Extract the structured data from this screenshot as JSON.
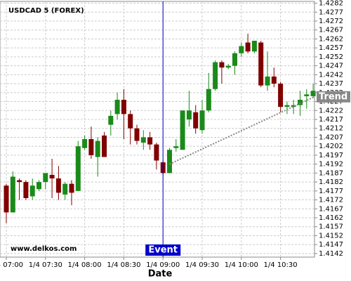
{
  "chart_data": {
    "type": "candlestick",
    "title": "USDCAD 5 (FOREX)",
    "watermark": "www.delkos.com",
    "x_label": "Date",
    "categories": [
      "1/4 07:00",
      null,
      null,
      null,
      null,
      null,
      "1/4 07:30",
      null,
      null,
      null,
      null,
      null,
      "1/4 08:00",
      null,
      null,
      null,
      null,
      null,
      "1/4 08:30",
      null,
      null,
      null,
      null,
      null,
      "1/4 09:00",
      null,
      null,
      null,
      null,
      null,
      "1/4 09:30",
      null,
      null,
      null,
      null,
      null,
      "1/4 10:00",
      null,
      null,
      null,
      null,
      null,
      "1/4 10:30",
      null,
      null,
      null,
      null,
      null
    ],
    "open": [
      1.418,
      1.4165,
      1.4183,
      1.4182,
      1.4174,
      1.4178,
      1.4182,
      1.4186,
      1.4184,
      1.4175,
      1.4181,
      1.4177,
      1.4201,
      1.4206,
      1.4196,
      1.4208,
      1.4214,
      1.422,
      1.4228,
      1.422,
      1.4212,
      1.4204,
      1.4207,
      1.4203,
      1.4193,
      1.4187,
      1.4201,
      1.42,
      1.4217,
      1.4221,
      1.4211,
      1.4222,
      1.4234,
      1.4249,
      1.4246,
      1.4247,
      1.4254,
      1.426,
      1.4255,
      1.426,
      1.4236,
      1.4241,
      1.4237,
      1.4224,
      1.4224,
      1.4225,
      1.423,
      1.423
    ],
    "high": [
      1.4181,
      1.4188,
      1.4184,
      1.4183,
      1.4184,
      1.4183,
      1.4187,
      1.4195,
      1.4191,
      1.4182,
      1.4183,
      1.4205,
      1.4208,
      1.4213,
      1.4207,
      1.421,
      1.4222,
      1.4232,
      1.4234,
      1.4222,
      1.4214,
      1.4211,
      1.421,
      1.4204,
      1.4194,
      1.4201,
      1.4206,
      1.4222,
      1.4233,
      1.4225,
      1.4228,
      1.4243,
      1.425,
      1.425,
      1.4248,
      1.4255,
      1.426,
      1.4265,
      1.4261,
      1.4261,
      1.4255,
      1.4246,
      1.4238,
      1.4227,
      1.4228,
      1.4233,
      1.4234,
      1.4237
    ],
    "low": [
      1.4159,
      1.4165,
      1.4172,
      1.4172,
      1.4172,
      1.4177,
      1.4178,
      1.4173,
      1.4172,
      1.4172,
      1.4169,
      1.4177,
      1.42,
      1.4195,
      1.4185,
      1.4196,
      1.4208,
      1.4217,
      1.4206,
      1.4203,
      1.4203,
      1.42,
      1.42,
      1.4189,
      1.4186,
      1.4187,
      1.4199,
      1.42,
      1.4213,
      1.4209,
      1.4209,
      1.4221,
      1.4233,
      1.4237,
      1.4245,
      1.4242,
      1.4252,
      1.4254,
      1.4254,
      1.4235,
      1.4233,
      1.4235,
      1.4221,
      1.422,
      1.422,
      1.4219,
      1.4223,
      1.4229
    ],
    "close": [
      1.4165,
      1.4185,
      1.4182,
      1.4173,
      1.418,
      1.4182,
      1.4187,
      1.4184,
      1.4176,
      1.4181,
      1.4176,
      1.4202,
      1.4206,
      1.4197,
      1.4205,
      1.4196,
      1.4219,
      1.4228,
      1.422,
      1.4212,
      1.4205,
      1.4207,
      1.4203,
      1.4194,
      1.4187,
      1.42,
      1.4202,
      1.4222,
      1.4222,
      1.4212,
      1.4222,
      1.4234,
      1.4249,
      1.4246,
      1.4247,
      1.4254,
      1.4258,
      1.4255,
      1.4261,
      1.4236,
      1.4241,
      1.4237,
      1.4224,
      1.4225,
      1.4225,
      1.4228,
      1.4231,
      1.4233
    ],
    "up_color": "#1a8a1a",
    "down_color": "#800000",
    "ylim": [
      1.414,
      1.4283
    ],
    "yticks": [
      1.4142,
      1.4147,
      1.4152,
      1.4157,
      1.4162,
      1.4167,
      1.4172,
      1.4177,
      1.4182,
      1.4187,
      1.4192,
      1.4197,
      1.4202,
      1.4207,
      1.4212,
      1.4217,
      1.4222,
      1.4227,
      1.4232,
      1.4237,
      1.4242,
      1.4247,
      1.4252,
      1.4257,
      1.4262,
      1.4267,
      1.4272,
      1.4277,
      1.4282
    ],
    "grid": true,
    "event": {
      "label": "Event",
      "x": 24,
      "color": "#0000cc"
    },
    "trend": {
      "label": "Trend",
      "x": [
        25,
        48
      ],
      "y": [
        1.4192,
        1.4231
      ],
      "color": "#888888"
    }
  }
}
